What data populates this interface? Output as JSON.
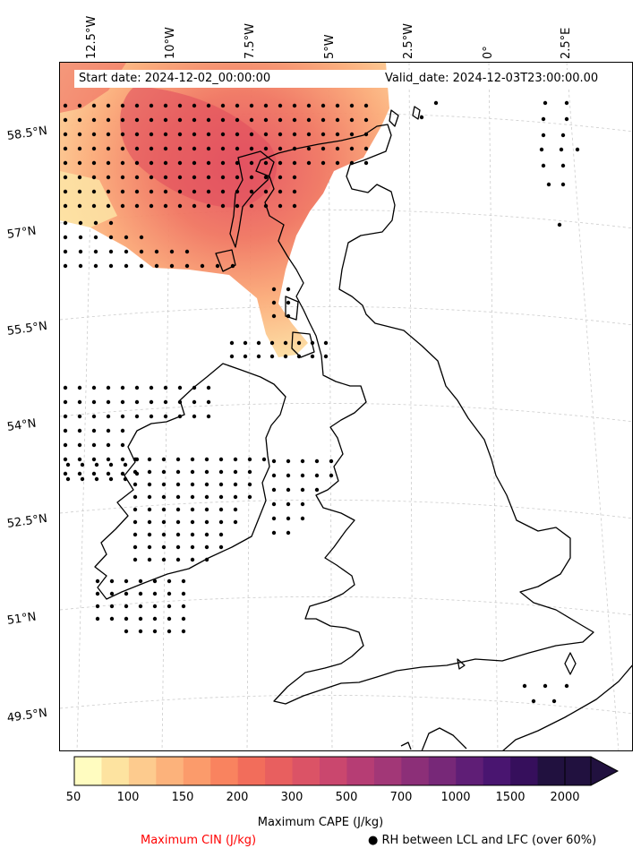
{
  "map": {
    "lon_labels": [
      "12.5°W",
      "10°W",
      "7.5°W",
      "5°W",
      "2.5°W",
      "0°",
      "2.5°E"
    ],
    "lat_labels": [
      "58.5°N",
      "57°N",
      "55.5°N",
      "54°N",
      "52.5°N",
      "51°N",
      "49.5°N"
    ],
    "start_date": "Start date: 2024-12-02_00:00:00",
    "valid_date": "Valid_date: 2024-12-03T23:00:00.00",
    "coastline_color": "#000000",
    "grid_color": "#cccccc"
  },
  "colorbar": {
    "ticks": [
      "50",
      "100",
      "150",
      "200",
      "300",
      "500",
      "700",
      "1000",
      "1500",
      "2000"
    ],
    "colors": [
      "#fffcc0",
      "#fde3a0",
      "#fdcb8e",
      "#fcb27b",
      "#fb9b6b",
      "#f9835f",
      "#f26d5b",
      "#e85f5f",
      "#db5366",
      "#ca476e",
      "#b63d74",
      "#a23777",
      "#8c2f78",
      "#772878",
      "#5f1e76",
      "#491570",
      "#360f5c",
      "#21113f"
    ],
    "label": "Maximum CAPE (J/kg)",
    "extend": "max"
  },
  "legend": {
    "cin_label": "Maximum CIN (J/kg)",
    "cin_color": "#ff0000",
    "rh_label": "● RH between LCL and LFC (over 60%)"
  }
}
